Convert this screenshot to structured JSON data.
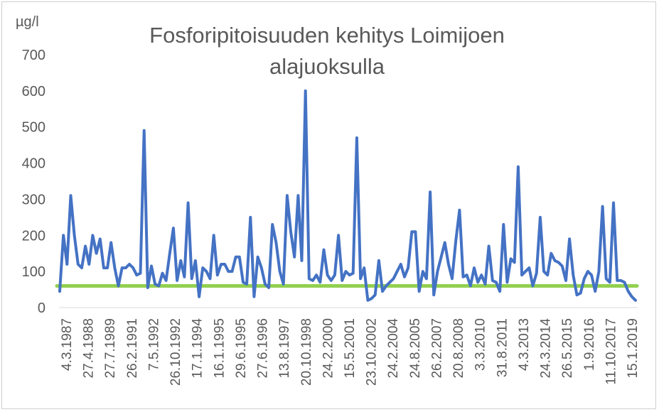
{
  "chart_data": {
    "type": "line",
    "title": "Fosforipitoisuuden kehitys Loimijoen alajuoksulla",
    "ylabel": "µg/l",
    "ylim": [
      0,
      700
    ],
    "yticks": [
      "0",
      "100",
      "200",
      "300",
      "400",
      "500",
      "600",
      "700"
    ],
    "xticks": [
      "4.3.1987",
      "27.4.1988",
      "27.7.1989",
      "26.2.1991",
      "7.5.1992",
      "26.10.1992",
      "17.1.1994",
      "16.1.1995",
      "29.6.1995",
      "27.6.1996",
      "13.8.1997",
      "20.10.1998",
      "24.2.2000",
      "15.5.2001",
      "23.10.2002",
      "24.2.2004",
      "24.8.2005",
      "26.2.2007",
      "20.8.2008",
      "3.3.2010",
      "31.8.2011",
      "4.3.2013",
      "24.3.2014",
      "26.5.2015",
      "1.9.2016",
      "11.10.2017",
      "15.1.2019"
    ],
    "grid": false,
    "series": [
      {
        "name": "",
        "color": "#4472c4",
        "values": [
          45,
          200,
          120,
          310,
          200,
          120,
          110,
          170,
          120,
          200,
          150,
          190,
          110,
          110,
          180,
          110,
          60,
          110,
          110,
          120,
          110,
          90,
          95,
          490,
          55,
          115,
          65,
          60,
          95,
          75,
          150,
          220,
          75,
          130,
          85,
          290,
          80,
          130,
          30,
          110,
          100,
          80,
          200,
          90,
          120,
          120,
          100,
          100,
          140,
          140,
          70,
          65,
          250,
          30,
          140,
          110,
          65,
          55,
          230,
          180,
          100,
          65,
          310,
          210,
          140,
          310,
          130,
          600,
          80,
          75,
          90,
          70,
          160,
          90,
          75,
          90,
          200,
          75,
          100,
          90,
          95,
          470,
          80,
          110,
          20,
          25,
          35,
          130,
          45,
          60,
          70,
          80,
          100,
          120,
          85,
          110,
          210,
          210,
          45,
          100,
          80,
          320,
          35,
          100,
          140,
          180,
          120,
          80,
          185,
          270,
          85,
          90,
          60,
          110,
          70,
          90,
          65,
          170,
          75,
          70,
          45,
          230,
          70,
          135,
          125,
          390,
          90,
          100,
          110,
          60,
          95,
          250,
          100,
          90,
          150,
          130,
          125,
          115,
          75,
          190,
          90,
          35,
          40,
          80,
          100,
          90,
          45,
          100,
          280,
          80,
          70,
          290,
          75,
          75,
          70,
          45,
          30,
          20
        ]
      },
      {
        "name": "",
        "color": "#92d050",
        "values": [
          60,
          60
        ]
      }
    ]
  }
}
